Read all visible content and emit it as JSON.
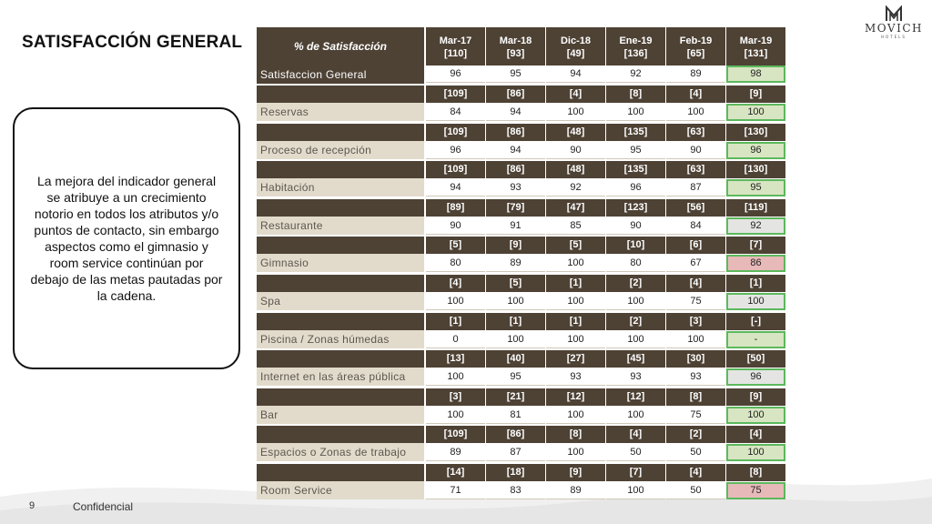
{
  "slide": {
    "title": "SATISFACCIÓN GENERAL",
    "page_number": "9",
    "footer": "Confidencial"
  },
  "logo": {
    "name": "MOVICH",
    "sub": "HOTELS"
  },
  "callout": {
    "text": "La mejora del indicador general se atribuye a un crecimiento notorio en todos los atributos y/o puntos de contacto, sin embargo aspectos como el gimnasio y room service continúan por debajo de las metas pautadas por la cadena."
  },
  "table": {
    "header_label": "% de Satisfacción",
    "periods": [
      {
        "month": "Mar-17",
        "n": "[110]"
      },
      {
        "month": "Mar-18",
        "n": "[93]"
      },
      {
        "month": "Dic-18",
        "n": "[49]"
      },
      {
        "month": "Ene-19",
        "n": "[136]"
      },
      {
        "month": "Feb-19",
        "n": "[65]"
      },
      {
        "month": "Mar-19",
        "n": "[131]"
      }
    ],
    "general": {
      "label": "Satisfaccion General",
      "values": [
        "96",
        "95",
        "94",
        "92",
        "89",
        "98"
      ],
      "highlight": "green"
    },
    "rows": [
      {
        "label": "Reservas",
        "n": [
          "[109]",
          "[86]",
          "[4]",
          "[8]",
          "[4]",
          "[9]"
        ],
        "values": [
          "84",
          "94",
          "100",
          "100",
          "100",
          "100"
        ],
        "highlight": "green"
      },
      {
        "label": "Proceso de recepción",
        "n": [
          "[109]",
          "[86]",
          "[48]",
          "[135]",
          "[63]",
          "[130]"
        ],
        "values": [
          "96",
          "94",
          "90",
          "95",
          "90",
          "96"
        ],
        "highlight": "green"
      },
      {
        "label": "Habitación",
        "n": [
          "[109]",
          "[86]",
          "[48]",
          "[135]",
          "[63]",
          "[130]"
        ],
        "values": [
          "94",
          "93",
          "92",
          "96",
          "87",
          "95"
        ],
        "highlight": "green"
      },
      {
        "label": "Restaurante",
        "n": [
          "[89]",
          "[79]",
          "[47]",
          "[123]",
          "[56]",
          "[119]"
        ],
        "values": [
          "90",
          "91",
          "85",
          "90",
          "84",
          "92"
        ],
        "highlight": "gray"
      },
      {
        "label": "Gimnasio",
        "n": [
          "[5]",
          "[9]",
          "[5]",
          "[10]",
          "[6]",
          "[7]"
        ],
        "values": [
          "80",
          "89",
          "100",
          "80",
          "67",
          "86"
        ],
        "highlight": "pink"
      },
      {
        "label": "Spa",
        "n": [
          "[4]",
          "[5]",
          "[1]",
          "[2]",
          "[4]",
          "[1]"
        ],
        "values": [
          "100",
          "100",
          "100",
          "100",
          "75",
          "100"
        ],
        "highlight": "gray"
      },
      {
        "label": "Piscina / Zonas húmedas",
        "n": [
          "[1]",
          "[1]",
          "[1]",
          "[2]",
          "[3]",
          "[-]"
        ],
        "values": [
          "0",
          "100",
          "100",
          "100",
          "100",
          "-"
        ],
        "highlight": "green"
      },
      {
        "label": "Internet en las áreas pública",
        "n": [
          "[13]",
          "[40]",
          "[27]",
          "[45]",
          "[30]",
          "[50]"
        ],
        "values": [
          "100",
          "95",
          "93",
          "93",
          "93",
          "96"
        ],
        "highlight": "gray"
      },
      {
        "label": "Bar",
        "n": [
          "[3]",
          "[21]",
          "[12]",
          "[12]",
          "[8]",
          "[9]"
        ],
        "values": [
          "100",
          "81",
          "100",
          "100",
          "75",
          "100"
        ],
        "highlight": "green"
      },
      {
        "label": "Espacios o Zonas de trabajo",
        "n": [
          "[109]",
          "[86]",
          "[8]",
          "[4]",
          "[2]",
          "[4]"
        ],
        "values": [
          "89",
          "87",
          "100",
          "50",
          "50",
          "100"
        ],
        "highlight": "green"
      },
      {
        "label": "Room Service",
        "n": [
          "[14]",
          "[18]",
          "[9]",
          "[7]",
          "[4]",
          "[8]"
        ],
        "values": [
          "71",
          "83",
          "89",
          "100",
          "50",
          "75"
        ],
        "highlight": "pink"
      }
    ]
  }
}
